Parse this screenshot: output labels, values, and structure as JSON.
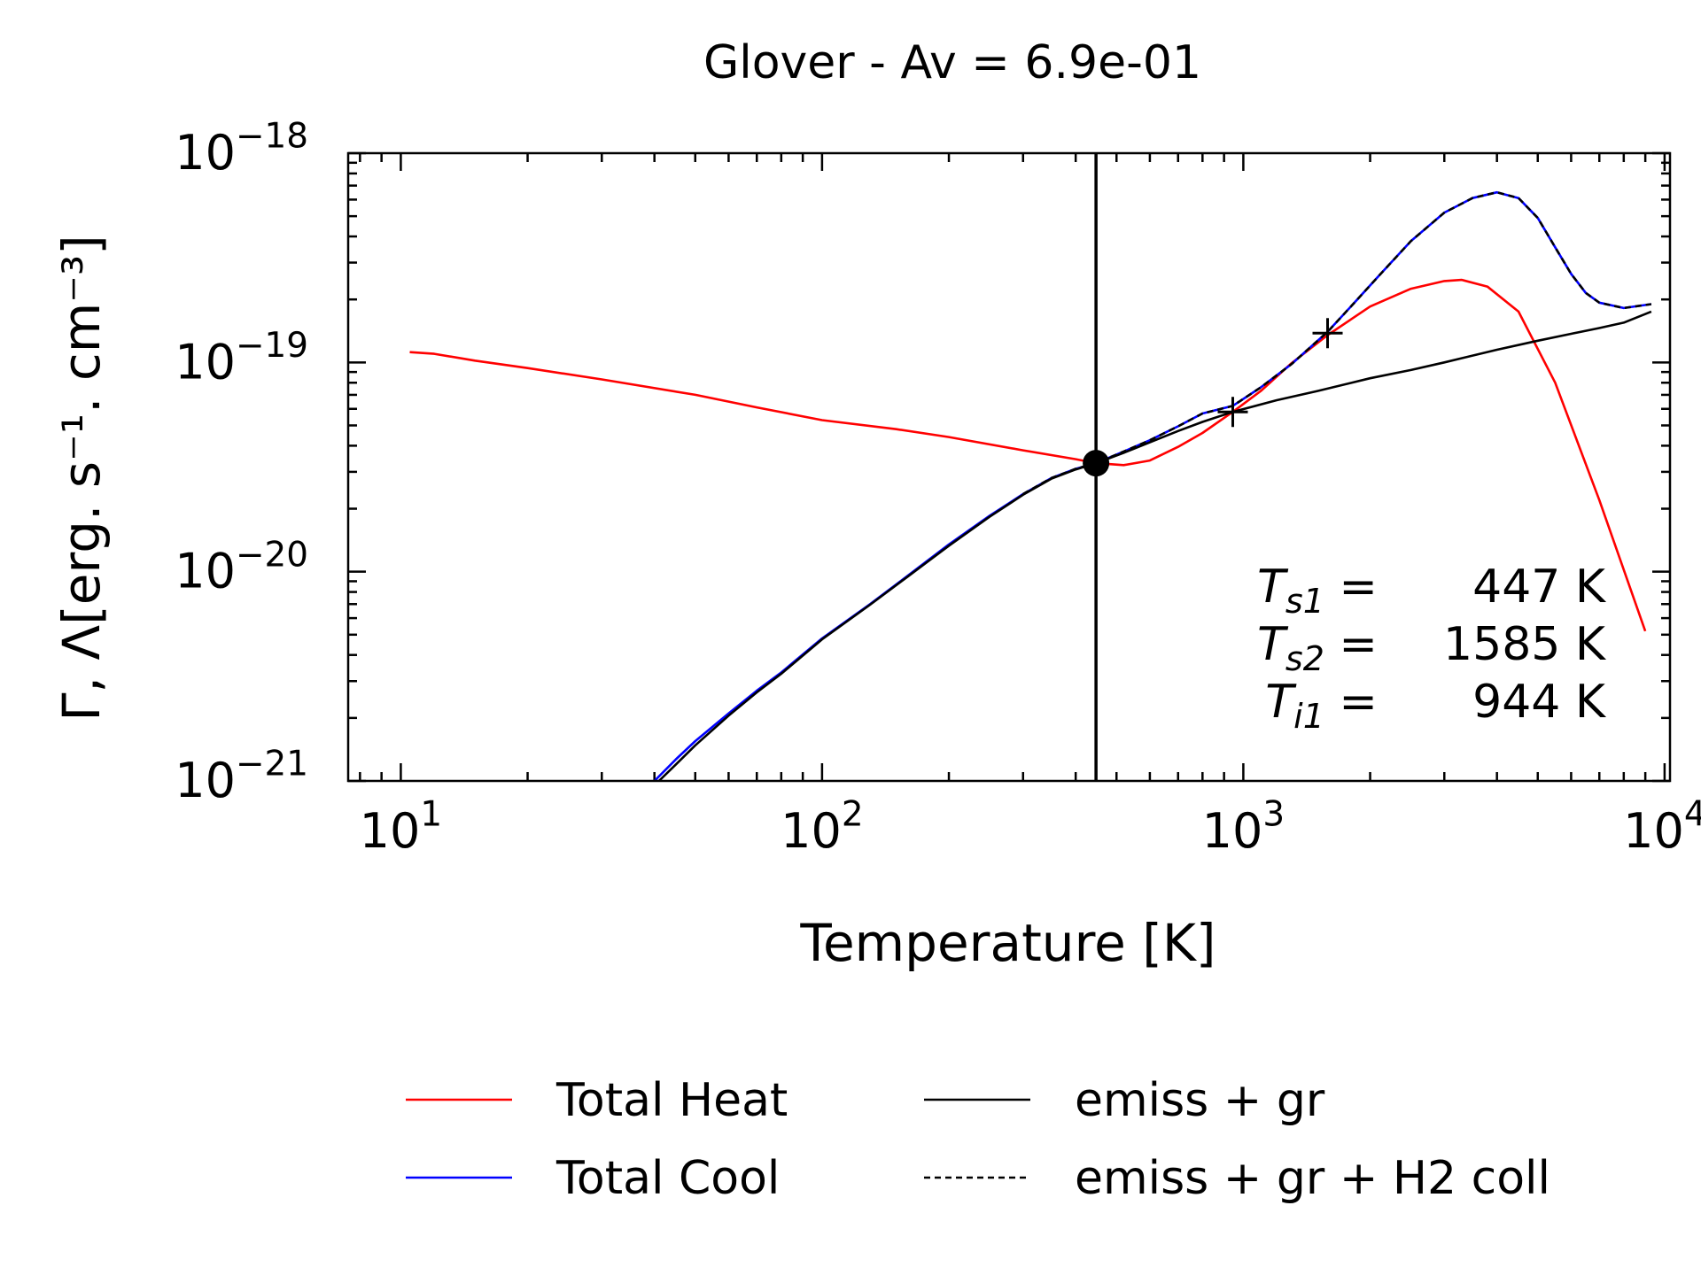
{
  "chart_data": {
    "type": "line",
    "title": "Glover - Av = 6.9e-01",
    "xlabel": "Temperature [K]",
    "ylabel": "Γ, Λ[erg. s⁻¹. cm⁻³]",
    "x_scale": "log",
    "y_scale": "log",
    "xlim": [
      7.5,
      10300
    ],
    "ylim": [
      1e-21,
      1e-18
    ],
    "x_ticks": [
      {
        "value": 10,
        "base": "10",
        "exp": "1"
      },
      {
        "value": 100,
        "base": "10",
        "exp": "2"
      },
      {
        "value": 1000,
        "base": "10",
        "exp": "3"
      },
      {
        "value": 10000,
        "base": "10",
        "exp": "4"
      }
    ],
    "y_ticks": [
      {
        "value": 1e-18,
        "base": "10",
        "exp": "−18"
      },
      {
        "value": 1e-19,
        "base": "10",
        "exp": "−19"
      },
      {
        "value": 1e-20,
        "base": "10",
        "exp": "−20"
      },
      {
        "value": 1e-21,
        "base": "10",
        "exp": "−21"
      }
    ],
    "grid": false,
    "legend_position": "bottom",
    "series": [
      {
        "name": "Total Heat",
        "color": "#ff0000",
        "dash": "solid",
        "x": [
          10.5,
          12,
          15,
          20,
          30,
          50,
          70,
          100,
          150,
          200,
          300,
          400,
          447,
          520,
          600,
          700,
          800,
          944,
          1100,
          1300,
          1585,
          2000,
          2500,
          3000,
          3300,
          3800,
          4500,
          5500,
          7000,
          9000
        ],
        "y": [
          1.12e-19,
          1.1e-19,
          1.02e-19,
          9.4e-20,
          8.3e-20,
          7e-20,
          6.1e-20,
          5.3e-20,
          4.8e-20,
          4.4e-20,
          3.8e-20,
          3.45e-20,
          3.3e-20,
          3.23e-20,
          3.4e-20,
          3.95e-20,
          4.6e-20,
          5.8e-20,
          7.3e-20,
          9.9e-20,
          1.35e-19,
          1.85e-19,
          2.25e-19,
          2.45e-19,
          2.48e-19,
          2.3e-19,
          1.75e-19,
          8e-20,
          2.2e-20,
          5.2e-21
        ]
      },
      {
        "name": "Total Cool",
        "color": "#0000ff",
        "dash": "solid",
        "x": [
          40,
          45,
          50,
          60,
          70,
          80,
          100,
          130,
          160,
          200,
          250,
          300,
          350,
          400,
          447,
          520,
          600,
          700,
          800,
          944,
          1100,
          1300,
          1585,
          1800,
          2100,
          2500,
          3000,
          3500,
          4000,
          4500,
          5000,
          5500,
          6000,
          6500,
          7000,
          8000,
          9300
        ],
        "y": [
          1e-21,
          1.27e-21,
          1.55e-21,
          2.1e-21,
          2.7e-21,
          3.3e-21,
          4.8e-21,
          7e-21,
          9.6e-21,
          1.35e-20,
          1.85e-20,
          2.35e-20,
          2.8e-20,
          3.1e-20,
          3.3e-20,
          3.75e-20,
          4.25e-20,
          4.95e-20,
          5.7e-20,
          6.2e-20,
          7.6e-20,
          9.8e-20,
          1.4e-19,
          1.85e-19,
          2.6e-19,
          3.8e-19,
          5.2e-19,
          6.1e-19,
          6.5e-19,
          6.1e-19,
          4.9e-19,
          3.55e-19,
          2.65e-19,
          2.15e-19,
          1.93e-19,
          1.82e-19,
          1.9e-19
        ]
      },
      {
        "name": "emiss + gr",
        "color": "#000000",
        "dash": "solid",
        "x": [
          41,
          45,
          50,
          60,
          70,
          80,
          100,
          130,
          160,
          200,
          250,
          300,
          350,
          400,
          447,
          520,
          600,
          700,
          800,
          944,
          1200,
          1500,
          2000,
          2500,
          3000,
          4000,
          5000,
          6000,
          7000,
          8000,
          9300
        ],
        "y": [
          1e-21,
          1.2e-21,
          1.48e-21,
          2.05e-21,
          2.65e-21,
          3.25e-21,
          4.75e-21,
          6.95e-21,
          9.5e-21,
          1.33e-20,
          1.83e-20,
          2.33e-20,
          2.78e-20,
          3.08e-20,
          3.3e-20,
          3.7e-20,
          4.15e-20,
          4.7e-20,
          5.2e-20,
          5.8e-20,
          6.6e-20,
          7.3e-20,
          8.4e-20,
          9.2e-20,
          1e-19,
          1.15e-19,
          1.27e-19,
          1.37e-19,
          1.46e-19,
          1.55e-19,
          1.75e-19
        ]
      },
      {
        "name": "emiss + gr + H2 coll",
        "color": "#000000",
        "dash": "dashed",
        "x": [
          300,
          350,
          400,
          447,
          520,
          600,
          700,
          800,
          944,
          1100,
          1300,
          1585,
          1800,
          2100,
          2500,
          3000,
          3500,
          4000,
          4500,
          5000,
          5500,
          6000,
          6500,
          7000,
          8000,
          9300
        ],
        "y": [
          2.35e-20,
          2.8e-20,
          3.1e-20,
          3.3e-20,
          3.75e-20,
          4.25e-20,
          4.95e-20,
          5.7e-20,
          6.2e-20,
          7.6e-20,
          9.8e-20,
          1.4e-19,
          1.85e-19,
          2.6e-19,
          3.8e-19,
          5.2e-19,
          6.1e-19,
          6.5e-19,
          6.1e-19,
          4.9e-19,
          3.55e-19,
          2.65e-19,
          2.15e-19,
          1.93e-19,
          1.82e-19,
          1.9e-19
        ]
      }
    ],
    "vertical_line": {
      "x": 447,
      "color": "#000000"
    },
    "equilibrium_point": {
      "x": 447,
      "y": 3.3e-20
    },
    "plus_markers": [
      {
        "x": 944,
        "y": 5.8e-20
      },
      {
        "x": 1585,
        "y": 1.38e-19
      }
    ],
    "annotations": [
      {
        "symbol": "T",
        "sub": "s1",
        "value": "447 K"
      },
      {
        "symbol": "T",
        "sub": "s2",
        "value": "1585 K"
      },
      {
        "symbol": "T",
        "sub": "i1",
        "value": "944 K"
      }
    ]
  }
}
